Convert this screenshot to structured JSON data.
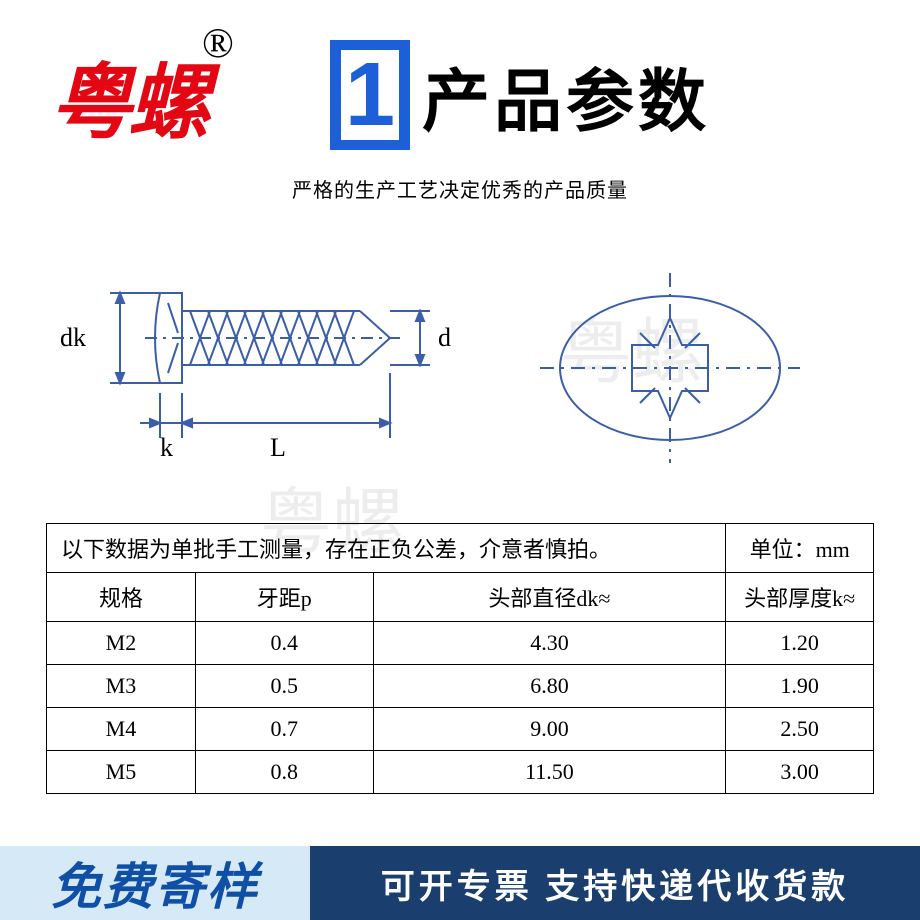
{
  "colors": {
    "brand_red": "#e30613",
    "title_blue": "#1c5fd6",
    "title_black": "#000000",
    "footer_left_bg": "#d6e9f7",
    "footer_left_text": "#0f4fa5",
    "footer_right_bg": "#1a3e6e",
    "footer_right_text": "#ffffff",
    "diagram_stroke": "#3a5ea8",
    "text_black": "#000000",
    "watermark": "rgba(0,0,0,0.07)"
  },
  "brand": {
    "text": "粤螺",
    "registered": "®"
  },
  "title": {
    "badge_number": "1",
    "text": "产品参数"
  },
  "subtitle": "严格的生产工艺决定优秀的产品质量",
  "diagram": {
    "labels": {
      "dk": "dk",
      "k": "k",
      "L": "L",
      "d": "d"
    },
    "watermark_text": "粤螺"
  },
  "table": {
    "note": "以下数据为单批手工测量，存在正负公差，介意者慎拍。",
    "unit_label": "单位：mm",
    "columns": [
      "规格",
      "牙距p",
      "头部直径dk≈",
      "头部厚度k≈"
    ],
    "rows": [
      [
        "M2",
        "0.4",
        "4.30",
        "1.20"
      ],
      [
        "M3",
        "0.5",
        "6.80",
        "1.90"
      ],
      [
        "M4",
        "0.7",
        "9.00",
        "2.50"
      ],
      [
        "M5",
        "0.8",
        "11.50",
        "3.00"
      ]
    ]
  },
  "footer": {
    "left": "免费寄样",
    "right": "可开专票 支持快递代收货款"
  }
}
